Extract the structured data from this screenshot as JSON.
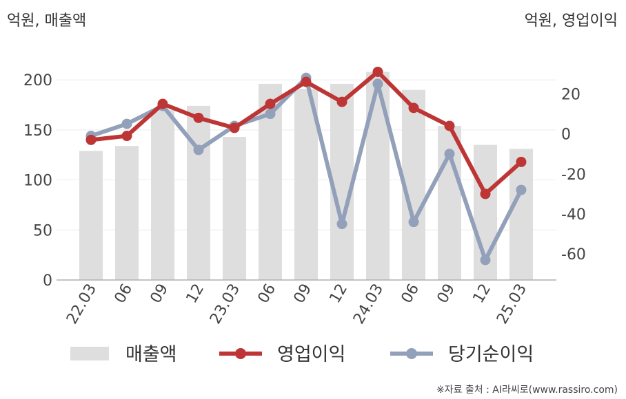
{
  "chart_data": {
    "type": "bar",
    "left_axis_unit": "억원, 매출액",
    "right_axis_unit": "억원, 영업이익",
    "categories": [
      "22.03",
      "06",
      "09",
      "12",
      "23.03",
      "06",
      "09",
      "12",
      "24.03",
      "06",
      "09",
      "12",
      "25.03"
    ],
    "left_ticks": [
      "0",
      "50",
      "100",
      "150",
      "200"
    ],
    "right_ticks": [
      "-60",
      "-40",
      "-20",
      "0",
      "20"
    ],
    "left_ylim": [
      0,
      220
    ],
    "right_ylim": [
      -73,
      37
    ],
    "series": [
      {
        "name": "매출액",
        "kind": "bar",
        "axis": "left",
        "color": "#dedede",
        "values": [
          129,
          134,
          170,
          174,
          143,
          196,
          191,
          196,
          208,
          190,
          154,
          135,
          131
        ]
      },
      {
        "name": "영업이익",
        "kind": "line",
        "axis": "right",
        "color": "#be3535",
        "values": [
          -3,
          -1,
          15,
          8,
          3,
          15,
          26,
          16,
          31,
          13,
          4,
          -30,
          -14
        ]
      },
      {
        "name": "당기순이익",
        "kind": "line",
        "axis": "right",
        "color": "#92a0ba",
        "values": [
          -1,
          5,
          14,
          -8,
          4,
          10,
          28,
          -45,
          25,
          -44,
          -10,
          -63,
          -28
        ]
      }
    ],
    "grid": true,
    "legend_position": "bottom",
    "source_note": "※자료 출처 : AI라씨로(www.rassiro.com)"
  }
}
